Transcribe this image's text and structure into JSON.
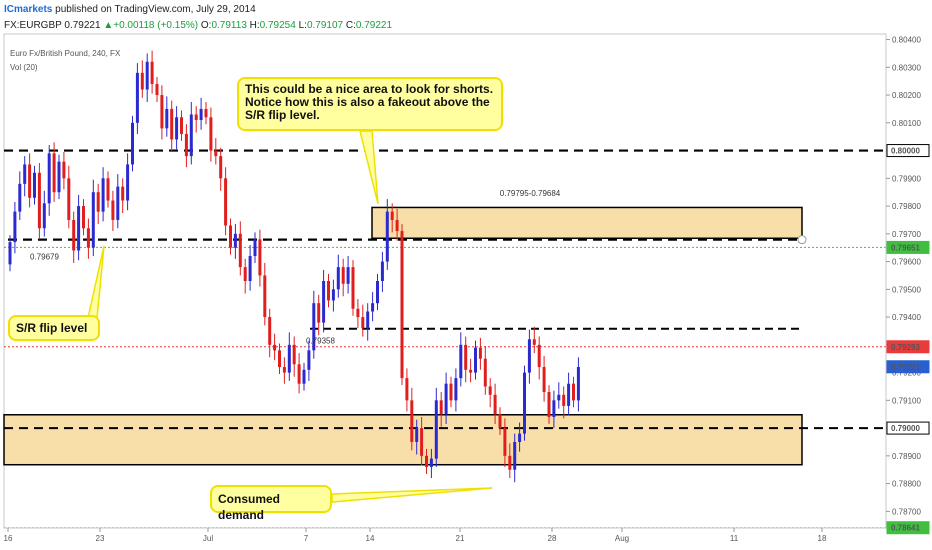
{
  "header": {
    "brand": "ICmarkets",
    "published": " published on TradingView.com, July 29, 2014",
    "symbol": "FX:EURGBP",
    "price": "0.79221",
    "arrow": "▲",
    "change": "+0.00118 (+0.15%)",
    "o_label": "O:",
    "o": "0.79113",
    "h_label": "H:",
    "h": "0.79254",
    "l_label": "L:",
    "l": "0.79107",
    "c_label": "C:",
    "c": "0.79221"
  },
  "chart_meta": {
    "pair_title": "Euro Fx/British Pound, 240, FX",
    "vol_label": "Vol (20)"
  },
  "annotations": {
    "shorts": "This could be a nice area to look for shorts.  Notice how this is also a fakeout above the S/R flip level.",
    "flip": "S/R flip level",
    "demand": "Consumed demand"
  },
  "chart_data": {
    "type": "candlestick",
    "title": "Euro Fx/British Pound, 240, FX",
    "ylim": [
      0.7864,
      0.8042
    ],
    "y_ticks": [
      "0.80400",
      "0.80300",
      "0.80200",
      "0.80100",
      "0.80000",
      "0.79900",
      "0.79800",
      "0.79700",
      "0.79600",
      "0.79500",
      "0.79400",
      "0.79300",
      "0.79200",
      "0.79100",
      "0.79000",
      "0.78900",
      "0.78800",
      "0.78700"
    ],
    "x_ticks": [
      "16",
      "23",
      "Jul",
      "7",
      "14",
      "21",
      "28",
      "Aug",
      "11",
      "18"
    ],
    "price_tags": [
      {
        "value": "0.80000",
        "bg": "#ffffff",
        "fg": "#000000"
      },
      {
        "value": "0.79651",
        "bg": "#3fbf3f",
        "fg": "#ffffff"
      },
      {
        "value": "0.79293",
        "bg": "#e83b3b",
        "fg": "#ffffff"
      },
      {
        "value": "0.79221",
        "bg": "#2a5fd0",
        "fg": "#ffffff"
      },
      {
        "value": "0.79000",
        "bg": "#ffffff",
        "fg": "#000000"
      },
      {
        "value": "0.78641",
        "bg": "#3fbf3f",
        "fg": "#ffffff"
      }
    ],
    "level_labels": [
      "0.79679",
      "0.79358",
      "0.79795-0.79684"
    ],
    "colors": {
      "up": "#2a2ad0",
      "down": "#e01e1e",
      "zone": "#f8dfaa",
      "annotation_fill": "#ffffa0",
      "annotation_border": "#f0e000"
    },
    "closes": [
      0.7967,
      0.7978,
      0.7988,
      0.7995,
      0.7983,
      0.7992,
      0.7972,
      0.7981,
      0.7999,
      0.7985,
      0.7996,
      0.799,
      0.7975,
      0.7964,
      0.798,
      0.7972,
      0.7965,
      0.7985,
      0.7978,
      0.799,
      0.7982,
      0.7975,
      0.7987,
      0.7982,
      0.7995,
      0.801,
      0.8028,
      0.8022,
      0.8032,
      0.8024,
      0.802,
      0.8008,
      0.8015,
      0.8004,
      0.8012,
      0.8006,
      0.7998,
      0.8013,
      0.8011,
      0.8015,
      0.8012,
      0.8,
      0.7998,
      0.799,
      0.7973,
      0.7965,
      0.797,
      0.7958,
      0.7953,
      0.7962,
      0.7968,
      0.7955,
      0.794,
      0.793,
      0.7928,
      0.7922,
      0.792,
      0.793,
      0.7923,
      0.7916,
      0.7921,
      0.7928,
      0.7945,
      0.7938,
      0.7953,
      0.7946,
      0.795,
      0.7958,
      0.7952,
      0.7958,
      0.7943,
      0.794,
      0.7936,
      0.7942,
      0.7945,
      0.7953,
      0.796,
      0.7978,
      0.7975,
      0.7971,
      0.7918,
      0.791,
      0.7895,
      0.79,
      0.789,
      0.7886,
      0.7889,
      0.791,
      0.7905,
      0.7916,
      0.791,
      0.7918,
      0.793,
      0.7921,
      0.792,
      0.7929,
      0.7925,
      0.7915,
      0.7912,
      0.7905,
      0.79,
      0.789,
      0.7885,
      0.7895,
      0.7898,
      0.792,
      0.7932,
      0.793,
      0.7922,
      0.7913,
      0.7904,
      0.791,
      0.7912,
      0.7908,
      0.7916,
      0.791,
      0.7922
    ]
  }
}
